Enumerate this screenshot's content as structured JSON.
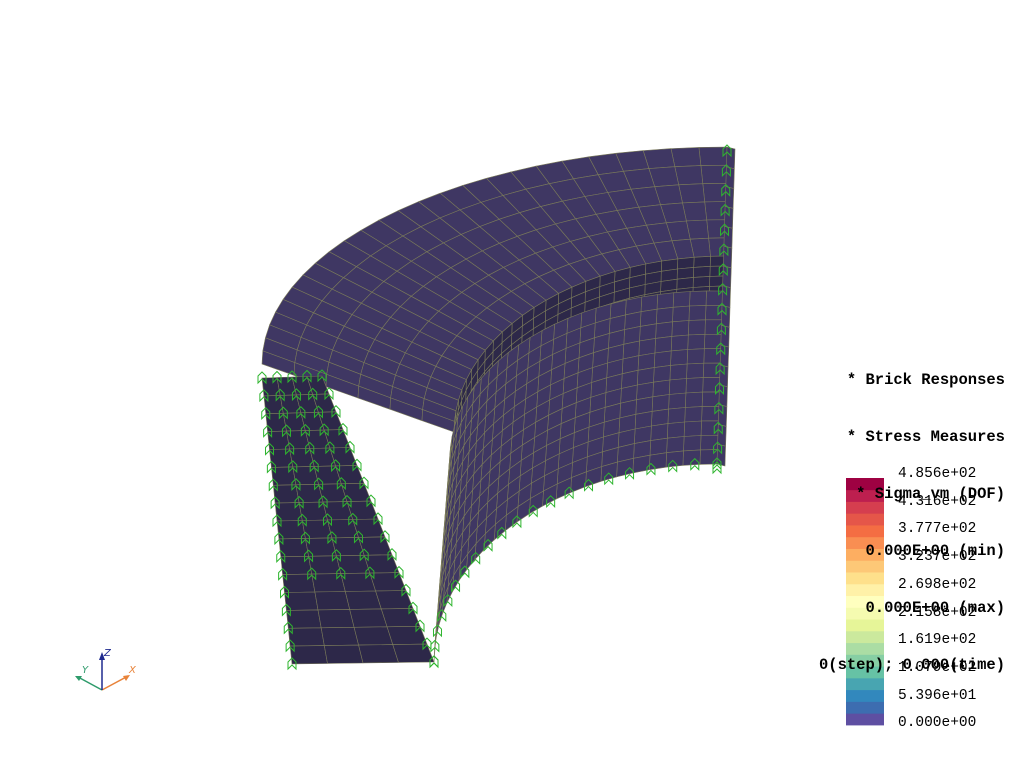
{
  "window": {
    "title": ""
  },
  "info": {
    "lines": [
      "* Brick Responses",
      "* Stress Measures",
      "* Sigma_vm (DOF)",
      "0.000E+00 (min)",
      "0.000E+00 (max)",
      "0(step); 0.000(time)"
    ]
  },
  "scalar_bar": {
    "labels": [
      "4.856e+02",
      "4.316e+02",
      "3.777e+02",
      "3.237e+02",
      "2.698e+02",
      "2.158e+02",
      "1.619e+02",
      "1.079e+02",
      "5.396e+01",
      "0.000e+00"
    ],
    "colors": [
      "#5e4fa2",
      "#3d6db0",
      "#3288bd",
      "#48a5b1",
      "#66c2a5",
      "#87cfa4",
      "#abdda4",
      "#cbe99d",
      "#e6f598",
      "#f5fbb0",
      "#ffffbf",
      "#fff1a8",
      "#fee08b",
      "#fdc877",
      "#fdae61",
      "#f98e52",
      "#f46d43",
      "#e55649",
      "#d53e4f",
      "#bd1f4f",
      "#9e0142"
    ]
  },
  "axes": {
    "x_label": "X",
    "y_label": "Y",
    "z_label": "Z"
  },
  "colors": {
    "mesh_fill": "#3f3763",
    "mesh_inner_fill": "#2d2849",
    "mesh_edges": "#7a7a5a",
    "boundary_markers": "#2fb52f",
    "axis_x": "#e8833a",
    "axis_y": "#2e9b6b",
    "axis_z": "#1f2a8f"
  }
}
